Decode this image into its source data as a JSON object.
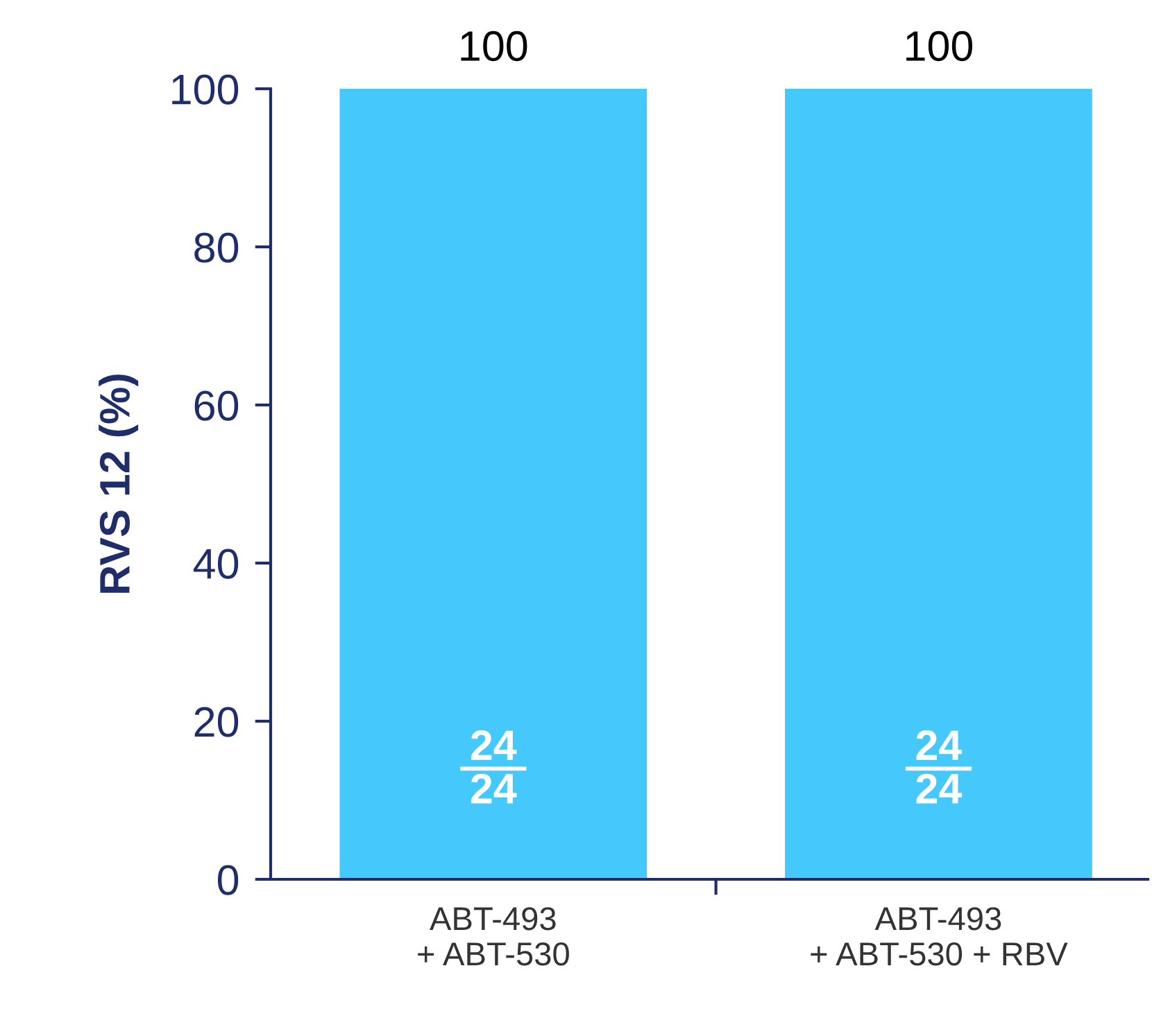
{
  "chart_data": {
    "type": "bar",
    "ylabel": "RVS 12 (%)",
    "categories": [
      "ABT-493\n+ ABT-530",
      "ABT-493\n+ ABT-530 + RBV"
    ],
    "values": [
      100,
      100
    ],
    "color": "#45c8fb",
    "ylim": [
      0,
      100
    ],
    "yticks": [
      0,
      20,
      40,
      60,
      80,
      100
    ],
    "data_labels": true,
    "grid": false,
    "legend": false,
    "annotations": [
      "24\n24",
      "24\n24"
    ]
  }
}
